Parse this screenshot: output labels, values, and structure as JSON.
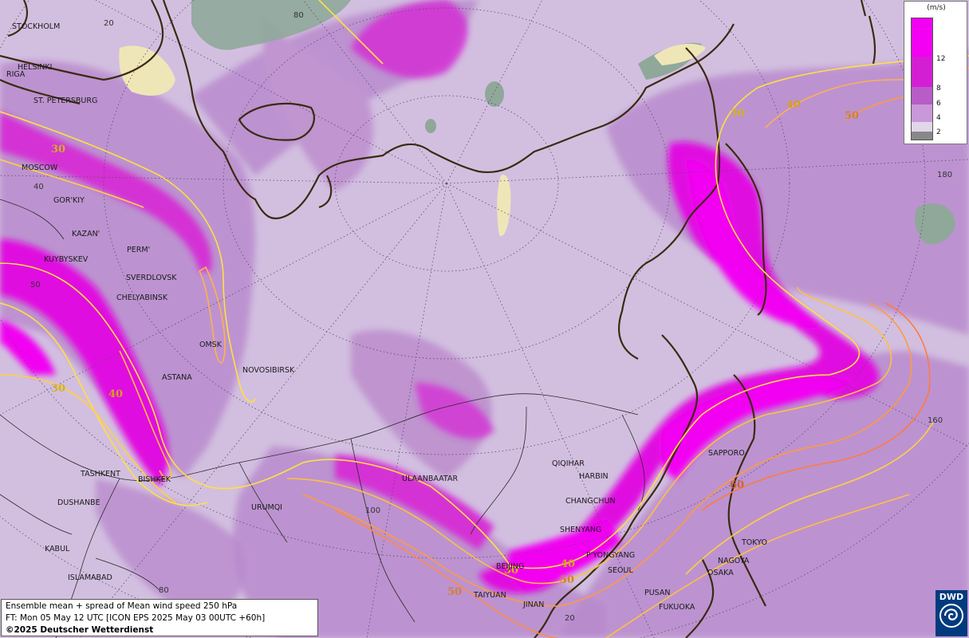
{
  "legend": {
    "unit": "(m/s)",
    "ticks": [
      "12",
      "8",
      "6",
      "4",
      "2"
    ],
    "colors": [
      "#f200f2",
      "#d41ed4",
      "#b85cc8",
      "#c898d8",
      "#e2d6ea",
      "#888888"
    ]
  },
  "info": {
    "line1": "Ensemble mean + spread of Mean wind speed 250 hPa",
    "line2": "FT: Mon 05 May 12 UTC [ICON EPS 2025 May 03 00UTC +60h]",
    "copyright": "©2025 Deutscher Wetterdienst"
  },
  "logo": {
    "text": "DWD",
    "icon": "dwd-swirl-icon"
  },
  "grid_labels": [
    "20",
    "80",
    "180",
    "160",
    "50",
    "40",
    "100",
    "80",
    "20"
  ],
  "contour_labels": [
    "30",
    "40",
    "50",
    "30",
    "30",
    "40",
    "60",
    "30",
    "40",
    "50",
    "50"
  ],
  "cities": [
    "STOCKHOLM",
    "HELSINKI",
    "RIGA",
    "ST. PETERSBURG",
    "MOSCOW",
    "GOR'KIY",
    "KAZAN'",
    "PERM'",
    "KUYBYSKEV",
    "SVERDLOVSK",
    "CHELYABINSK",
    "OMSK",
    "ASTANA",
    "NOVOSIBIRSK",
    "TASHKENT",
    "BISHKEK",
    "DUSHANBE",
    "URUMQI",
    "KABUL",
    "ISLAMABAD",
    "ULAANBAATAR",
    "QIQIHAR",
    "HARBIN",
    "CHANGCHUN",
    "SHENYANG",
    "BEIJING",
    "P'YONGYANG",
    "SEOUL",
    "TAIYUAN",
    "JINAN",
    "PUSAN",
    "FUKUOKA",
    "OSAKA",
    "NAGOYA",
    "TOKYO",
    "SAPPORO"
  ]
}
